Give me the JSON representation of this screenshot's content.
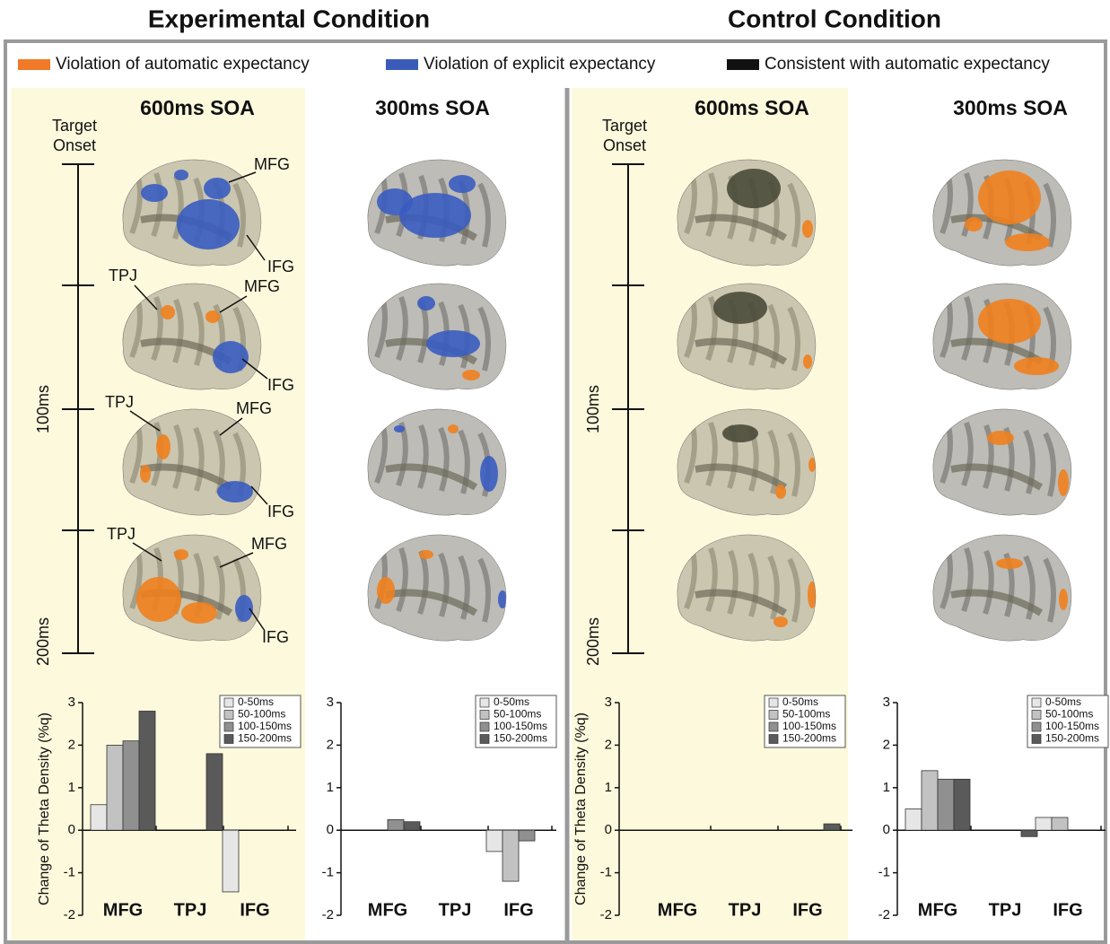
{
  "conditions": [
    {
      "title": "Experimental Condition"
    },
    {
      "title": "Control Condition"
    }
  ],
  "legend": [
    {
      "label": "Violation of automatic expectancy",
      "color": "#f07a28"
    },
    {
      "label": "Violation of explicit expectancy",
      "color": "#3a5cb8"
    },
    {
      "label": "Consistent with automatic expectancy",
      "color": "#111111"
    }
  ],
  "panels": [
    {
      "title": "600ms SOA"
    },
    {
      "title": "300ms SOA"
    },
    {
      "title": "600ms SOA"
    },
    {
      "title": "300ms SOA"
    }
  ],
  "timeline": {
    "onset": "Target Onset",
    "mid": "100ms",
    "end": "200ms"
  },
  "brain_labels": [
    [
      "MFG",
      "IFG"
    ],
    [
      "TPJ",
      "MFG",
      "IFG"
    ],
    [
      "TPJ",
      "MFG",
      "IFG"
    ],
    [
      "TPJ",
      "MFG",
      "IFG"
    ]
  ],
  "chart_data": [
    {
      "type": "bar",
      "ylabel": "Change of Theta Density (%q)",
      "categories": [
        "MFG",
        "TPJ",
        "IFG"
      ],
      "series": [
        {
          "name": "0-50ms",
          "color": "#e6e6e6",
          "values": [
            0.6,
            0,
            -1.45
          ]
        },
        {
          "name": "50-100ms",
          "color": "#c2c2c2",
          "values": [
            2.0,
            0,
            0
          ]
        },
        {
          "name": "100-150ms",
          "color": "#909090",
          "values": [
            2.1,
            0,
            0
          ]
        },
        {
          "name": "150-200ms",
          "color": "#5a5a5a",
          "values": [
            2.8,
            1.8,
            0
          ]
        }
      ],
      "ylim": [
        -2,
        3
      ],
      "yticks": [
        -2,
        -1,
        0,
        1,
        2,
        3
      ]
    },
    {
      "type": "bar",
      "categories": [
        "MFG",
        "TPJ",
        "IFG"
      ],
      "series": [
        {
          "name": "0-50ms",
          "color": "#e6e6e6",
          "values": [
            0,
            0,
            -0.5
          ]
        },
        {
          "name": "50-100ms",
          "color": "#c2c2c2",
          "values": [
            0,
            0,
            -1.2
          ]
        },
        {
          "name": "100-150ms",
          "color": "#909090",
          "values": [
            0.25,
            0,
            -0.25
          ]
        },
        {
          "name": "150-200ms",
          "color": "#5a5a5a",
          "values": [
            0.2,
            0,
            0
          ]
        }
      ],
      "ylim": [
        -2,
        3
      ],
      "yticks": [
        -2,
        -1,
        0,
        1,
        2,
        3
      ]
    },
    {
      "type": "bar",
      "ylabel": "Change of Theta Density (%q)",
      "categories": [
        "MFG",
        "TPJ",
        "IFG"
      ],
      "series": [
        {
          "name": "0-50ms",
          "color": "#e6e6e6",
          "values": [
            0,
            0,
            0
          ]
        },
        {
          "name": "50-100ms",
          "color": "#c2c2c2",
          "values": [
            0,
            0,
            0
          ]
        },
        {
          "name": "100-150ms",
          "color": "#909090",
          "values": [
            0,
            0,
            0
          ]
        },
        {
          "name": "150-200ms",
          "color": "#5a5a5a",
          "values": [
            0,
            0,
            0.15
          ]
        }
      ],
      "ylim": [
        -2,
        3
      ],
      "yticks": [
        -2,
        -1,
        0,
        1,
        2,
        3
      ]
    },
    {
      "type": "bar",
      "categories": [
        "MFG",
        "TPJ",
        "IFG"
      ],
      "series": [
        {
          "name": "0-50ms",
          "color": "#e6e6e6",
          "values": [
            0.5,
            0,
            0.3
          ]
        },
        {
          "name": "50-100ms",
          "color": "#c2c2c2",
          "values": [
            1.4,
            0,
            0.3
          ]
        },
        {
          "name": "100-150ms",
          "color": "#909090",
          "values": [
            1.2,
            0,
            0
          ]
        },
        {
          "name": "150-200ms",
          "color": "#5a5a5a",
          "values": [
            1.2,
            -0.15,
            0
          ]
        }
      ],
      "ylim": [
        -2,
        3
      ],
      "yticks": [
        -2,
        -1,
        0,
        1,
        2,
        3
      ]
    }
  ]
}
